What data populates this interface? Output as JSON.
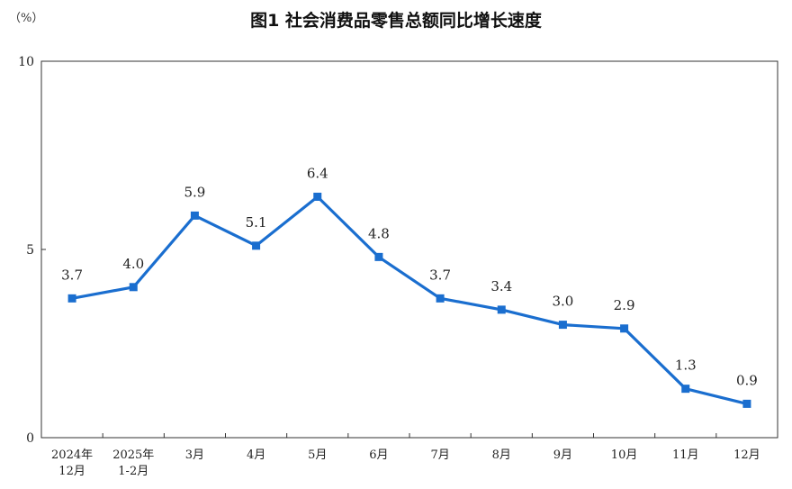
{
  "chart_data": {
    "type": "line",
    "title": "图1  社会消费品零售总额同比增长速度",
    "unit": "（%）",
    "categories": [
      [
        "2024年",
        "12月"
      ],
      [
        "2025年",
        "1-2月"
      ],
      [
        "3月"
      ],
      [
        "4月"
      ],
      [
        "5月"
      ],
      [
        "6月"
      ],
      [
        "7月"
      ],
      [
        "8月"
      ],
      [
        "9月"
      ],
      [
        "10月"
      ],
      [
        "11月"
      ],
      [
        "12月"
      ]
    ],
    "values": [
      3.7,
      4.0,
      5.9,
      5.1,
      6.4,
      4.8,
      3.7,
      3.4,
      3.0,
      2.9,
      1.3,
      0.9
    ],
    "value_labels": [
      "3.7",
      "4.0",
      "5.9",
      "5.1",
      "6.4",
      "4.8",
      "3.7",
      "3.4",
      "3.0",
      "2.9",
      "1.3",
      "0.9"
    ],
    "yticks": [
      "0",
      "5",
      "10"
    ],
    "ylim": [
      0,
      10
    ],
    "grid": false,
    "line_color": "#1a6ecf"
  }
}
